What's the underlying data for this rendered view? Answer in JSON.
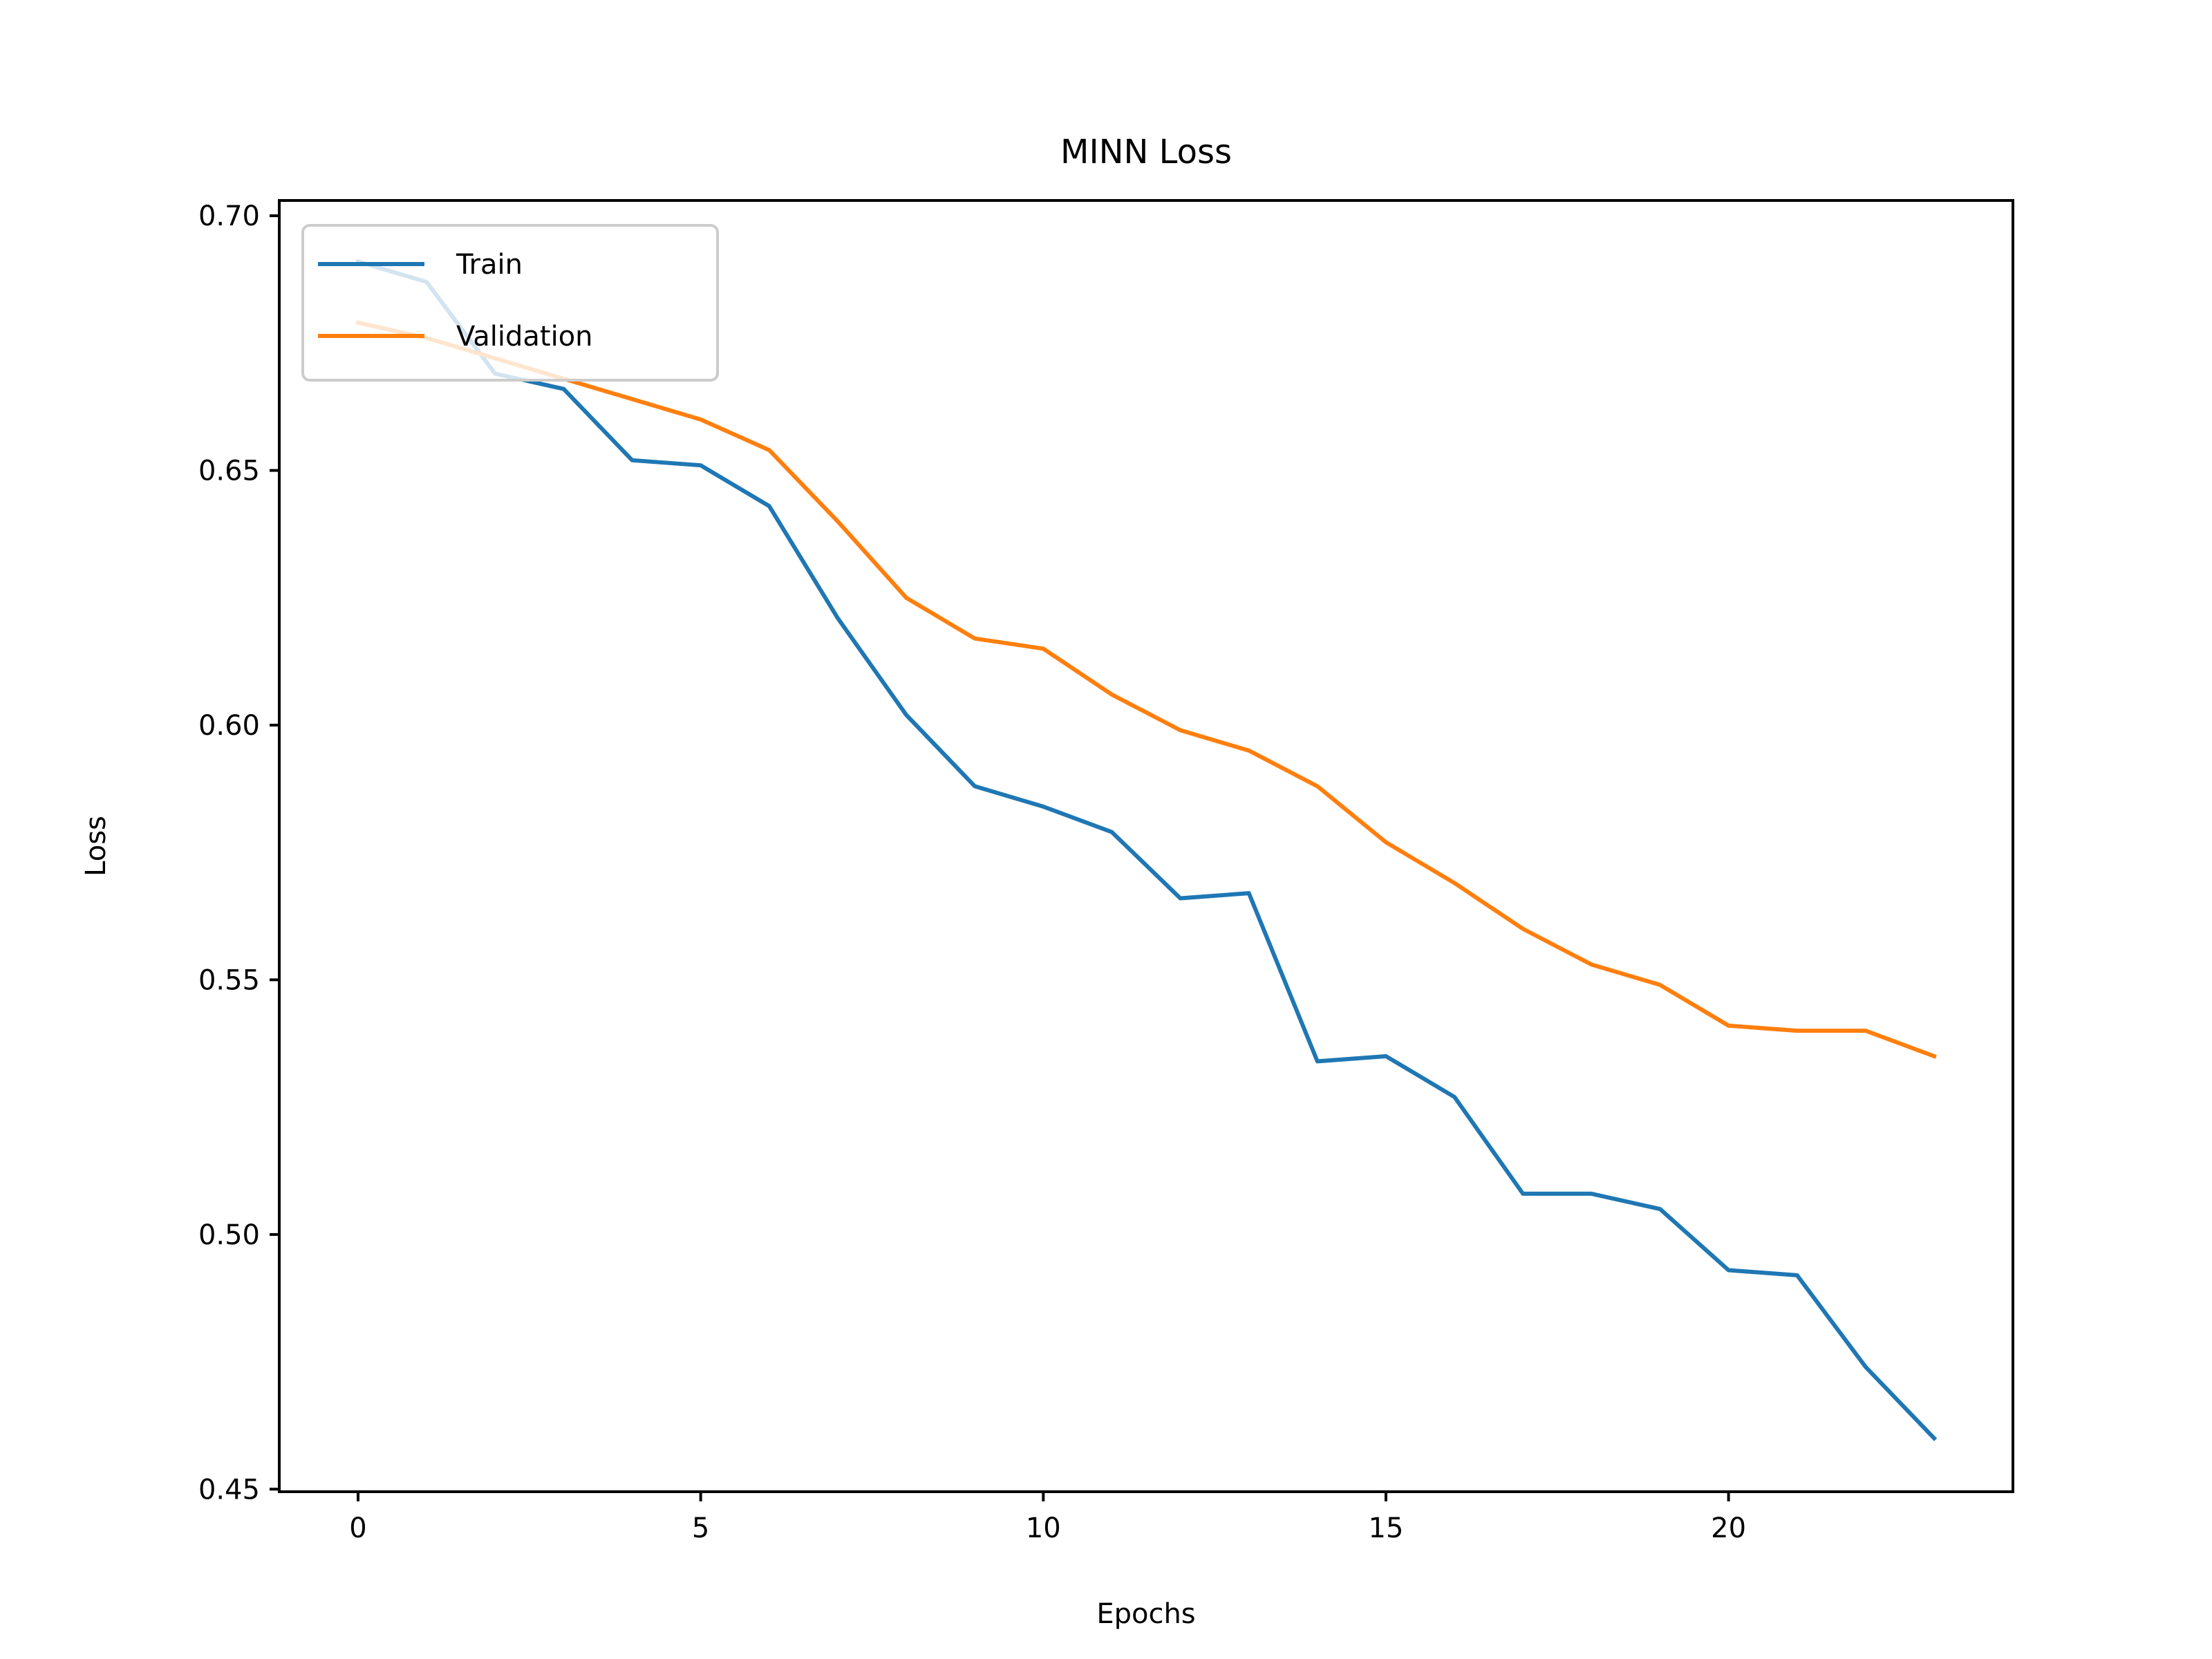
{
  "chart_data": {
    "type": "line",
    "title": "MINN Loss",
    "xlabel": "Epochs",
    "ylabel": "Loss",
    "xlim": [
      -1.15,
      24.15
    ],
    "ylim": [
      0.4495,
      0.703
    ],
    "x_ticks": [
      0,
      5,
      10,
      15,
      20
    ],
    "y_ticks": [
      0.45,
      0.5,
      0.55,
      0.6,
      0.65,
      0.7
    ],
    "x_tick_labels": [
      "0",
      "5",
      "10",
      "15",
      "20"
    ],
    "y_tick_labels": [
      "0.45",
      "0.50",
      "0.55",
      "0.60",
      "0.65",
      "0.70"
    ],
    "grid": false,
    "legend_position": "upper-left",
    "x": [
      0,
      1,
      2,
      3,
      4,
      5,
      6,
      7,
      8,
      9,
      10,
      11,
      12,
      13,
      14,
      15,
      16,
      17,
      18,
      19,
      20,
      21,
      22,
      23
    ],
    "series": [
      {
        "name": "Train",
        "color": "#1f77b4",
        "values": [
          0.691,
          0.687,
          0.669,
          0.666,
          0.652,
          0.651,
          0.643,
          0.621,
          0.602,
          0.588,
          0.584,
          0.579,
          0.566,
          0.567,
          0.534,
          0.535,
          0.527,
          0.508,
          0.508,
          0.505,
          0.493,
          0.492,
          0.474,
          0.46
        ]
      },
      {
        "name": "Validation",
        "color": "#ff7f0e",
        "values": [
          0.679,
          0.676,
          0.672,
          0.668,
          0.664,
          0.66,
          0.654,
          0.64,
          0.625,
          0.617,
          0.615,
          0.606,
          0.599,
          0.595,
          0.588,
          0.577,
          0.569,
          0.56,
          0.553,
          0.549,
          0.541,
          0.54,
          0.54,
          0.535
        ]
      }
    ]
  }
}
